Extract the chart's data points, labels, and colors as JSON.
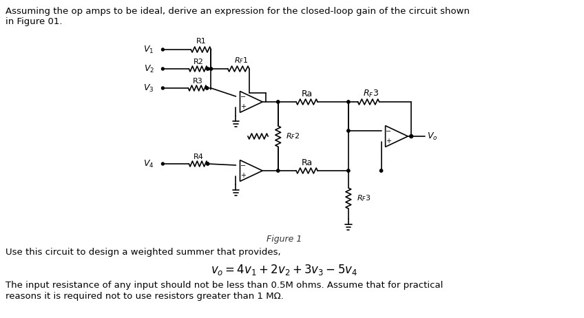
{
  "bg_color": "#ffffff",
  "text_color": "#000000",
  "fig_width": 8.48,
  "fig_height": 4.62,
  "header_text": "Assuming the op amps to be ideal, derive an expression for the closed-loop gain of the circuit shown\nin Figure 01.",
  "footer_line1": "Use this circuit to design a weighted summer that provides,",
  "formula": "$v_o = 4v_1 + 2v_2 + 3v_3 - 5v_4$",
  "footer_line3": "The input resistance of any input should not be less than 0.5M ohms. Assume that for practical",
  "footer_line4": "reasons it is required not to use resistors greater than 1 MΩ.",
  "figure_caption": "Figure 1"
}
